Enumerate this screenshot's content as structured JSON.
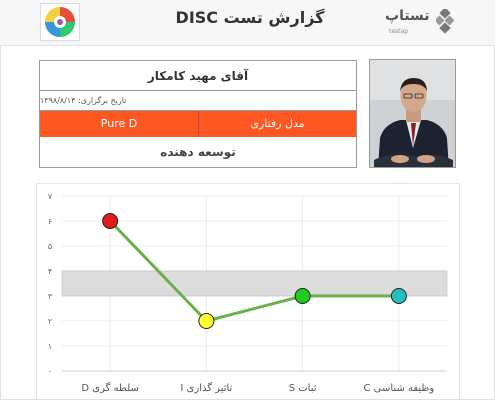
{
  "header": {
    "title": "گزارش تست DISC",
    "brand_name": "تستاپ",
    "brand_sub": "testap",
    "disc_logo_icon": "disc-wheel-icon",
    "brand_icon": "diamond-grid-icon"
  },
  "profile": {
    "name": "آقای مهید کامکار",
    "date_label": "تاریخ برگزاری: ۱۳۹۸/۸/۱۴",
    "model_label": "مدل رفتاری",
    "model_value": "Pure D",
    "role": "توسعه دهنده",
    "photo_icon": "person-photo"
  },
  "colors": {
    "accent": "#ff5722",
    "line": "#6ab04c",
    "band": "#dcdcdc"
  },
  "chart_data": {
    "type": "line",
    "categories": [
      "سلطه گری D",
      "تاثیر گذاری I",
      "ثبات S",
      "وظیفه شناسی C"
    ],
    "values": [
      6,
      2,
      3,
      3
    ],
    "point_colors": [
      "#e01b1b",
      "#ffff33",
      "#1fcc1f",
      "#22c0c0"
    ],
    "ylim": [
      0,
      7
    ],
    "yticks": [
      "۰",
      "۱",
      "۲",
      "۳",
      "۴",
      "۵",
      "۶",
      "۷"
    ],
    "band": [
      3,
      4
    ],
    "grid": true,
    "title": "",
    "xlabel": "",
    "ylabel": ""
  }
}
